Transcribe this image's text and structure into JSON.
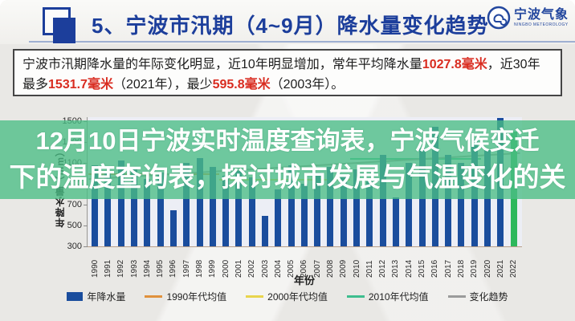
{
  "header": {
    "title": "5、宁波市汛期（4~9月）降水量变化趋势",
    "logo_text": "宁波气象",
    "logo_subtext": "NINGBO METEOROLOGY"
  },
  "infobox": {
    "segments": [
      {
        "text": "宁波市汛期降水量的年际变化明显，近10年明显增加，常年平均降水量",
        "red": false
      },
      {
        "text": "1027.8毫米",
        "red": true
      },
      {
        "text": "，近30年最多",
        "red": false
      },
      {
        "text": "1531.7毫米",
        "red": true
      },
      {
        "text": "（2021年），最少",
        "red": false
      },
      {
        "text": "595.8毫米",
        "red": true
      },
      {
        "text": "（2003年）。",
        "red": false
      }
    ]
  },
  "overlay": {
    "line1": "12月10日宁波实时温度查询表，宁波气候变迁",
    "line2": "下的温度查询表，探讨城市发展与气温变化的关"
  },
  "chart_data": {
    "type": "bar",
    "title": "",
    "xlabel": "年份",
    "ylabel": "年降水量（mm）",
    "ylim": [
      300,
      1600
    ],
    "yticks": [
      300,
      500,
      700,
      900,
      1100,
      1300,
      1500
    ],
    "grid": false,
    "legend_position": "bottom",
    "categories": [
      1990,
      1991,
      1992,
      1993,
      1994,
      1995,
      1996,
      1997,
      1998,
      1999,
      2000,
      2001,
      2002,
      2003,
      2004,
      2005,
      2006,
      2007,
      2008,
      2009,
      2010,
      2011,
      2012,
      2013,
      2014,
      2015,
      2016,
      2017,
      2018,
      2019,
      2020,
      2021,
      2022
    ],
    "values": [
      1080,
      1000,
      1120,
      1060,
      950,
      1010,
      650,
      1100,
      1150,
      1060,
      980,
      1020,
      960,
      595.8,
      850,
      1080,
      900,
      1010,
      1060,
      990,
      1040,
      920,
      1180,
      770,
      1100,
      1240,
      1450,
      1180,
      1100,
      1320,
      1220,
      1531.7,
      1400
    ],
    "bar_color": "#1a4d9d",
    "highlight": {
      "category": 2022,
      "color": "#2db85c"
    },
    "annotations": {
      "mean_annual": 1027.8,
      "max": {
        "year": 2021,
        "value": 1531.7
      },
      "min": {
        "year": 2003,
        "value": 595.8
      }
    },
    "mean_lines": [
      {
        "name": "1990年代均值",
        "color": "#e0913c",
        "value": 1000,
        "span_index": [
          0,
          9
        ]
      },
      {
        "name": "2000年代均值",
        "color": "#e8d44d",
        "value": 950,
        "span_index": [
          10,
          19
        ]
      },
      {
        "name": "2010年代均值",
        "color": "#3dbd8e",
        "value": 1150,
        "span_index": [
          20,
          29
        ]
      }
    ],
    "trend": {
      "name": "变化趋势",
      "color": "#9b9b9b",
      "from": 950,
      "to": 1200
    },
    "legend": [
      {
        "label": "年降水量",
        "color": "#1a4d9d",
        "type": "square"
      },
      {
        "label": "1990年代均值",
        "color": "#e0913c",
        "type": "line"
      },
      {
        "label": "2000年代均值",
        "color": "#e8d44d",
        "type": "line"
      },
      {
        "label": "2010年代均值",
        "color": "#3dbd8e",
        "type": "line"
      },
      {
        "label": "变化趋势",
        "color": "#9b9b9b",
        "type": "line"
      }
    ]
  }
}
